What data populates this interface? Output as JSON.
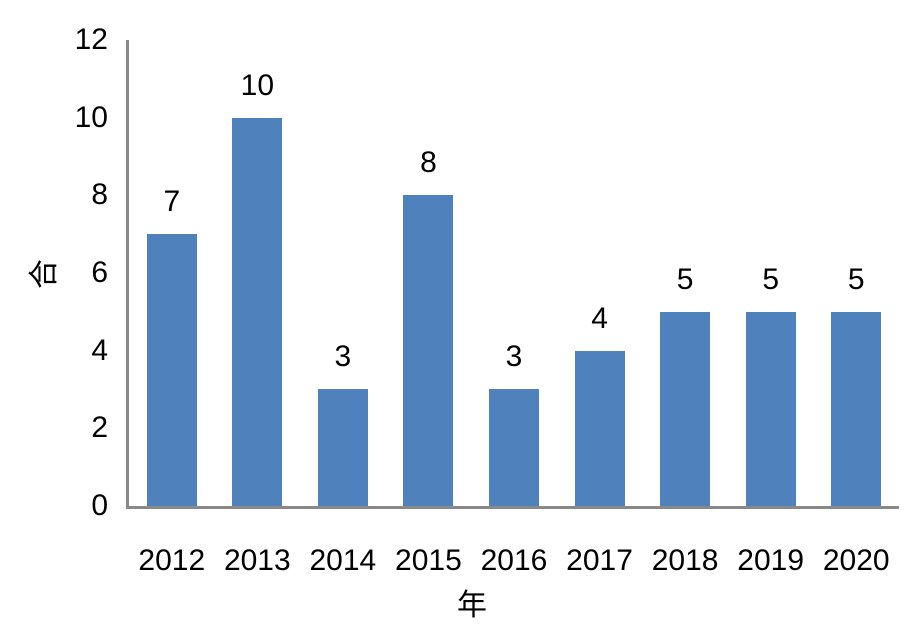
{
  "chart_data": {
    "type": "bar",
    "title": "",
    "xlabel": "年",
    "ylabel": "合",
    "categories": [
      "2012",
      "2013",
      "2014",
      "2015",
      "2016",
      "2017",
      "2018",
      "2019",
      "2020"
    ],
    "values": [
      7,
      10,
      3,
      8,
      3,
      4,
      5,
      5,
      5
    ],
    "data_labels": [
      "7",
      "10",
      "3",
      "8",
      "3",
      "4",
      "5",
      "5",
      "5"
    ],
    "ylim": [
      0,
      12
    ],
    "yticks": [
      "0",
      "2",
      "4",
      "6",
      "8",
      "10",
      "12"
    ],
    "grid": false,
    "legend": false,
    "colors": {
      "bar": "#4F81BD",
      "axis": "#898989",
      "text": "#000000",
      "background": "#FFFFFF"
    }
  }
}
